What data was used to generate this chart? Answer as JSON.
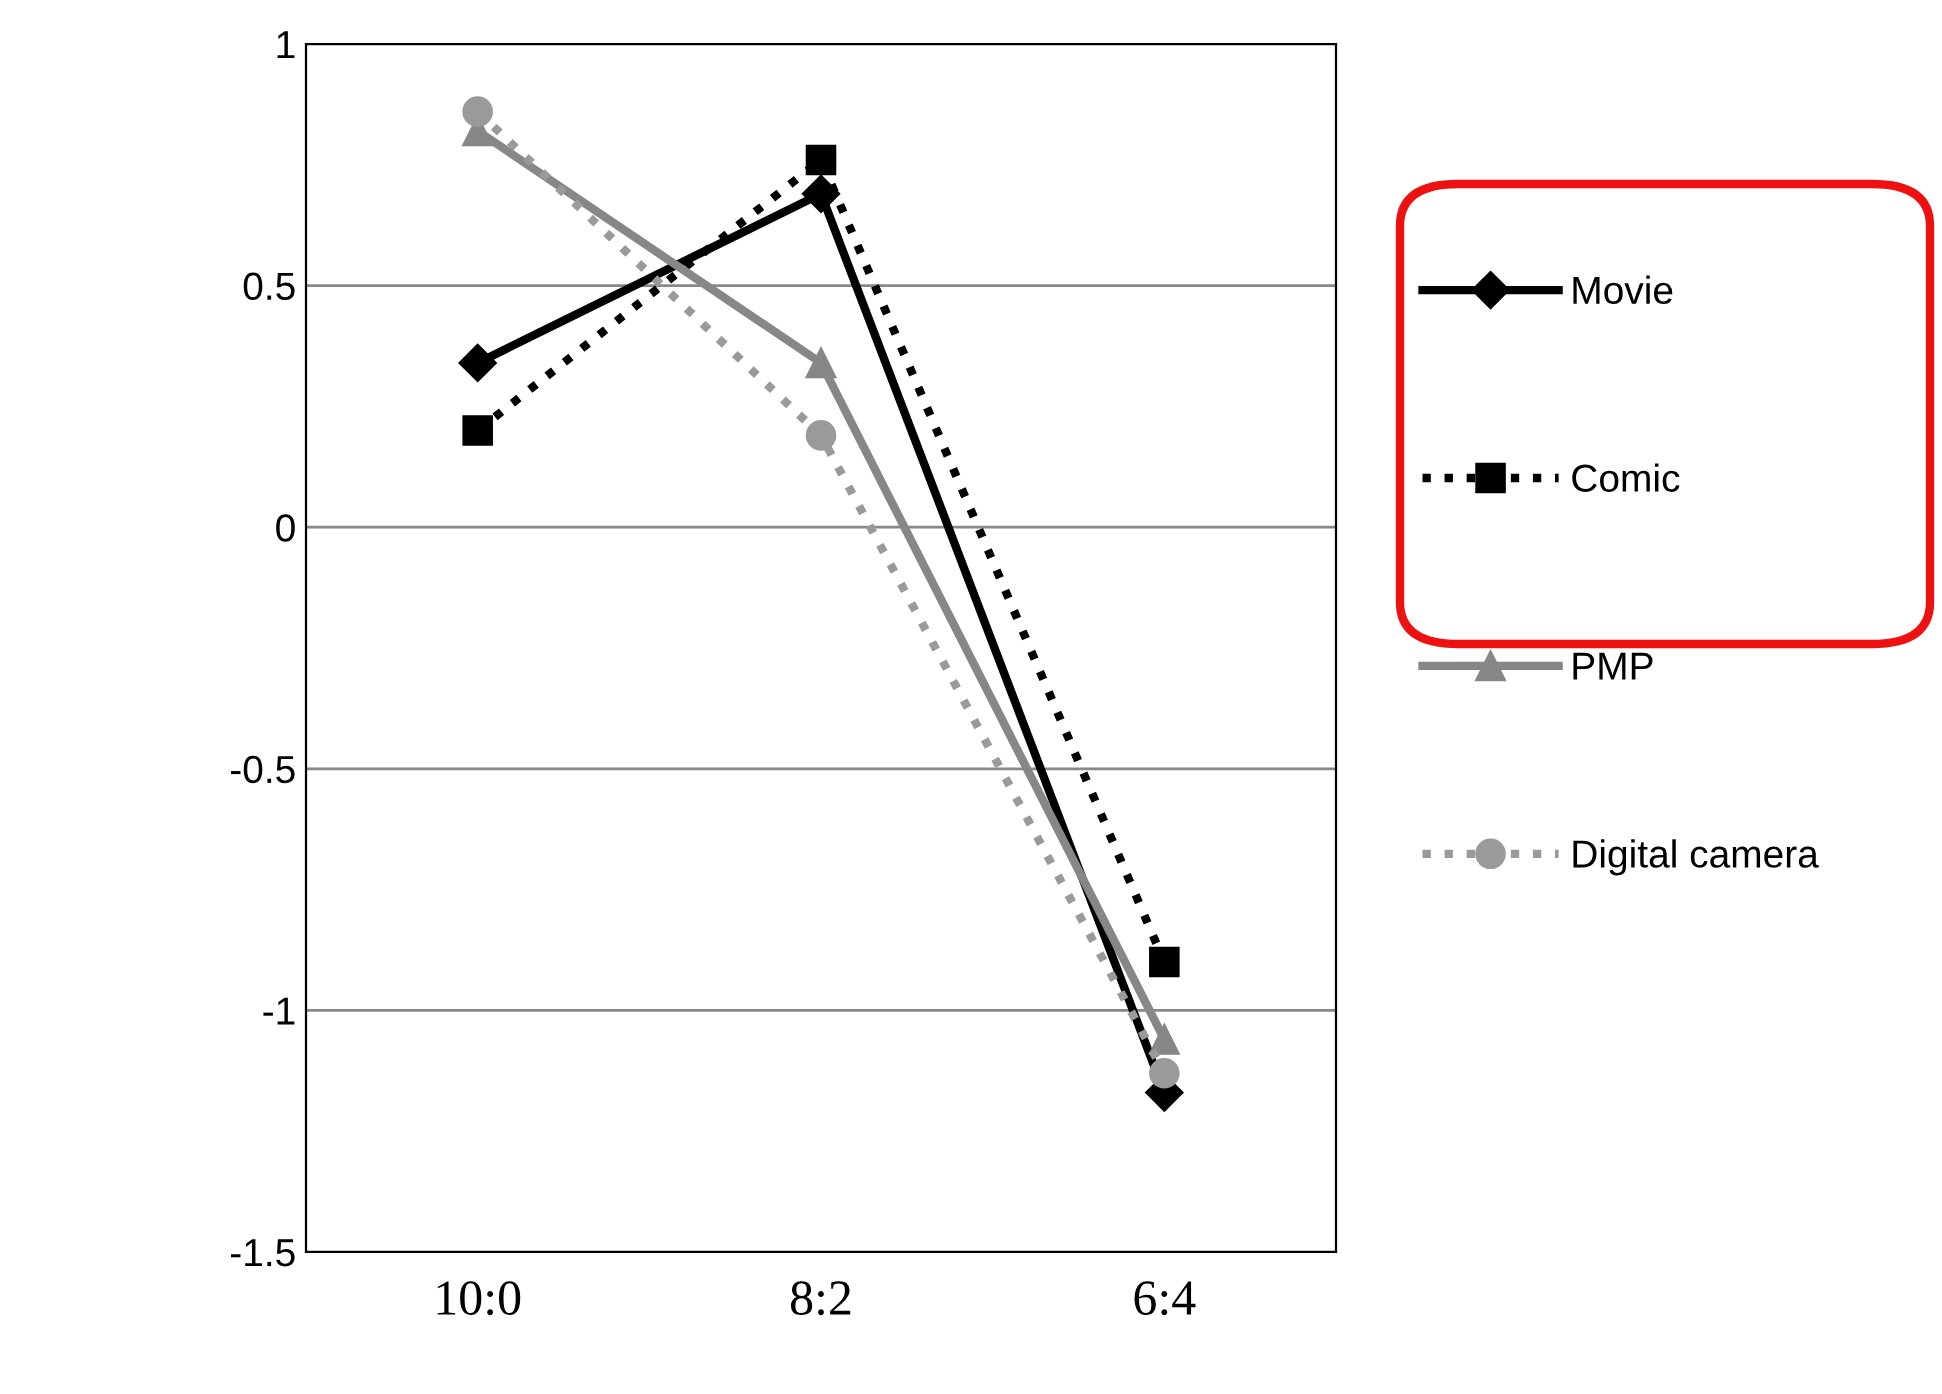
{
  "chart_data": {
    "type": "line",
    "categories": [
      "10:0",
      "8:2",
      "6:4"
    ],
    "series": [
      {
        "name": "Movie",
        "color": "#000000",
        "marker": "diamond",
        "line_style": "solid",
        "values": [
          0.34,
          0.69,
          -1.17
        ]
      },
      {
        "name": "Comic",
        "color": "#000000",
        "marker": "square",
        "line_style": "dotted",
        "values": [
          0.2,
          0.76,
          -0.9
        ]
      },
      {
        "name": "PMP",
        "color": "#878787",
        "marker": "triangle",
        "line_style": "solid",
        "values": [
          0.82,
          0.34,
          -1.06
        ]
      },
      {
        "name": "Digital camera",
        "color": "#9a9a9a",
        "marker": "circle",
        "line_style": "dotted",
        "values": [
          0.86,
          0.19,
          -1.13
        ]
      }
    ],
    "ylim": [
      -1.5,
      1
    ],
    "yticks": [
      1,
      0.5,
      0,
      -0.5,
      -1,
      -1.5
    ],
    "grid": "y",
    "legend": "right"
  }
}
